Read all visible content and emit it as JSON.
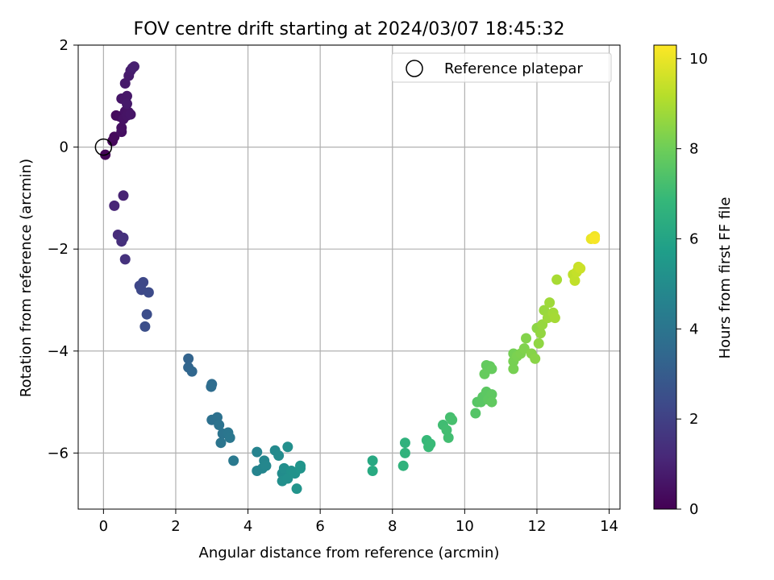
{
  "chart_data": {
    "type": "scatter",
    "title": "FOV centre drift starting at 2024/03/07 18:45:32",
    "xlabel": "Angular distance from reference (arcmin)",
    "ylabel": "Rotation from reference (arcmin)",
    "xlim": [
      -0.7,
      14.3
    ],
    "ylim": [
      -7.1,
      2.0
    ],
    "xticks": [
      0,
      2,
      4,
      6,
      8,
      10,
      12,
      14
    ],
    "yticks": [
      -6,
      -4,
      -2,
      0,
      2
    ],
    "grid": true,
    "legend": {
      "position": "top-right",
      "entries": [
        "Reference platepar"
      ]
    },
    "reference_point": {
      "label": "Reference platepar",
      "x": 0,
      "y": 0
    },
    "colorbar": {
      "label": "Hours from first FF file",
      "colormap": "viridis",
      "range": [
        0,
        10.3
      ],
      "ticks": [
        0,
        2,
        4,
        6,
        8,
        10
      ]
    },
    "series": [
      {
        "columns": [
          "x",
          "y",
          "hours"
        ],
        "points": [
          [
            0.05,
            -0.15,
            0.1
          ],
          [
            0.25,
            0.12,
            0.2
          ],
          [
            0.3,
            0.2,
            0.25
          ],
          [
            0.35,
            0.62,
            0.3
          ],
          [
            0.45,
            0.6,
            0.35
          ],
          [
            0.5,
            0.3,
            0.4
          ],
          [
            0.5,
            0.38,
            0.45
          ],
          [
            0.55,
            0.55,
            0.5
          ],
          [
            0.6,
            0.7,
            0.5
          ],
          [
            0.65,
            0.62,
            0.55
          ],
          [
            0.7,
            0.68,
            0.55
          ],
          [
            0.75,
            0.64,
            0.6
          ],
          [
            0.5,
            0.95,
            0.6
          ],
          [
            0.6,
            0.95,
            0.65
          ],
          [
            0.65,
            1.0,
            0.65
          ],
          [
            0.65,
            0.85,
            0.7
          ],
          [
            0.6,
            1.25,
            0.7
          ],
          [
            0.7,
            1.4,
            0.75
          ],
          [
            0.75,
            1.5,
            0.8
          ],
          [
            0.8,
            1.55,
            0.85
          ],
          [
            0.85,
            1.58,
            0.9
          ],
          [
            0.55,
            -0.95,
            1.0
          ],
          [
            0.3,
            -1.15,
            1.1
          ],
          [
            0.4,
            -1.72,
            1.3
          ],
          [
            0.5,
            -1.85,
            1.4
          ],
          [
            0.55,
            -1.78,
            1.45
          ],
          [
            0.6,
            -2.2,
            1.5
          ],
          [
            1.0,
            -2.72,
            2.2
          ],
          [
            1.1,
            -2.65,
            2.25
          ],
          [
            1.05,
            -2.8,
            2.3
          ],
          [
            1.25,
            -2.85,
            2.35
          ],
          [
            1.2,
            -3.28,
            2.45
          ],
          [
            1.15,
            -3.52,
            2.5
          ],
          [
            2.35,
            -4.15,
            3.3
          ],
          [
            2.35,
            -4.32,
            3.35
          ],
          [
            2.45,
            -4.4,
            3.4
          ],
          [
            3.0,
            -4.65,
            3.6
          ],
          [
            2.98,
            -4.7,
            3.65
          ],
          [
            3.0,
            -5.35,
            3.8
          ],
          [
            3.15,
            -5.3,
            3.85
          ],
          [
            3.2,
            -5.45,
            3.9
          ],
          [
            3.3,
            -5.62,
            3.95
          ],
          [
            3.25,
            -5.8,
            4.0
          ],
          [
            3.45,
            -5.6,
            4.05
          ],
          [
            3.5,
            -5.7,
            4.1
          ],
          [
            3.6,
            -6.15,
            4.2
          ],
          [
            4.25,
            -5.98,
            4.6
          ],
          [
            4.25,
            -6.35,
            4.65
          ],
          [
            4.4,
            -6.3,
            4.7
          ],
          [
            4.45,
            -6.15,
            4.75
          ],
          [
            4.5,
            -6.25,
            4.8
          ],
          [
            4.75,
            -5.95,
            4.9
          ],
          [
            4.85,
            -6.05,
            4.95
          ],
          [
            4.95,
            -6.4,
            5.0
          ],
          [
            5.0,
            -6.3,
            5.05
          ],
          [
            4.95,
            -6.55,
            5.1
          ],
          [
            5.1,
            -5.88,
            5.1
          ],
          [
            5.1,
            -6.5,
            5.15
          ],
          [
            5.2,
            -6.35,
            5.2
          ],
          [
            5.3,
            -6.4,
            5.25
          ],
          [
            5.35,
            -6.7,
            5.3
          ],
          [
            5.45,
            -6.3,
            5.3
          ],
          [
            5.45,
            -6.25,
            5.35
          ],
          [
            7.45,
            -6.15,
            6.2
          ],
          [
            7.45,
            -6.35,
            6.25
          ],
          [
            8.35,
            -5.8,
            6.6
          ],
          [
            8.35,
            -6.0,
            6.65
          ],
          [
            8.3,
            -6.25,
            6.65
          ],
          [
            8.95,
            -5.75,
            6.9
          ],
          [
            9.0,
            -5.88,
            6.95
          ],
          [
            9.05,
            -5.82,
            6.95
          ],
          [
            9.4,
            -5.45,
            7.1
          ],
          [
            9.5,
            -5.55,
            7.15
          ],
          [
            9.55,
            -5.7,
            7.15
          ],
          [
            9.6,
            -5.3,
            7.2
          ],
          [
            9.65,
            -5.35,
            7.25
          ],
          [
            10.3,
            -5.22,
            7.5
          ],
          [
            10.35,
            -5.0,
            7.55
          ],
          [
            10.45,
            -5.0,
            7.6
          ],
          [
            10.5,
            -4.9,
            7.6
          ],
          [
            10.6,
            -4.8,
            7.65
          ],
          [
            10.65,
            -4.95,
            7.7
          ],
          [
            10.75,
            -4.85,
            7.7
          ],
          [
            10.75,
            -5.0,
            7.75
          ],
          [
            10.6,
            -4.28,
            7.8
          ],
          [
            10.7,
            -4.3,
            7.8
          ],
          [
            10.55,
            -4.45,
            7.85
          ],
          [
            10.75,
            -4.35,
            7.85
          ],
          [
            11.35,
            -4.05,
            8.1
          ],
          [
            11.35,
            -4.2,
            8.15
          ],
          [
            11.35,
            -4.35,
            8.15
          ],
          [
            11.45,
            -4.1,
            8.2
          ],
          [
            11.55,
            -4.05,
            8.25
          ],
          [
            11.65,
            -3.95,
            8.3
          ],
          [
            11.7,
            -3.75,
            8.35
          ],
          [
            11.85,
            -4.05,
            8.4
          ],
          [
            11.95,
            -4.15,
            8.45
          ],
          [
            12.0,
            -3.55,
            8.5
          ],
          [
            12.05,
            -3.85,
            8.55
          ],
          [
            12.1,
            -3.65,
            8.6
          ],
          [
            12.15,
            -3.48,
            8.65
          ],
          [
            12.2,
            -3.2,
            8.7
          ],
          [
            12.3,
            -3.35,
            8.75
          ],
          [
            12.35,
            -3.05,
            8.8
          ],
          [
            12.45,
            -3.25,
            8.85
          ],
          [
            12.5,
            -3.35,
            8.9
          ],
          [
            12.55,
            -2.6,
            8.95
          ],
          [
            13.0,
            -2.5,
            9.3
          ],
          [
            13.05,
            -2.62,
            9.35
          ],
          [
            13.1,
            -2.45,
            9.4
          ],
          [
            13.15,
            -2.35,
            9.45
          ],
          [
            13.2,
            -2.38,
            9.5
          ],
          [
            13.5,
            -1.8,
            10.0
          ],
          [
            13.6,
            -1.75,
            10.1
          ],
          [
            13.6,
            -1.8,
            10.2
          ]
        ]
      }
    ]
  }
}
